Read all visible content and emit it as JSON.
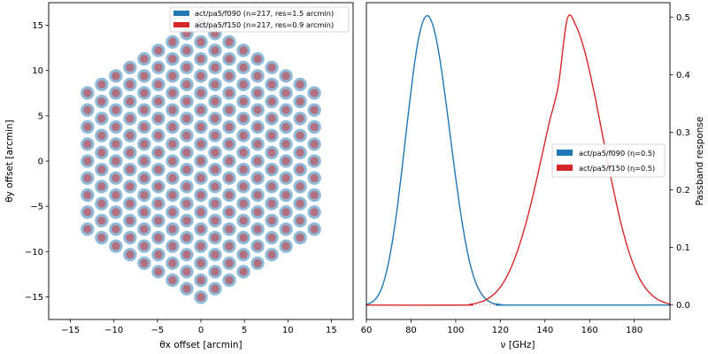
{
  "chart_data": [
    {
      "type": "scatter",
      "title": "",
      "xlabel": "θx offset [arcmin]",
      "ylabel": "θy offset [arcmin]",
      "xlim": [
        -17.5,
        17.5
      ],
      "ylim": [
        -17.5,
        17.5
      ],
      "xticks": [
        -15,
        -10,
        -5,
        0,
        5,
        10,
        15
      ],
      "yticks": [
        -15,
        -10,
        -5,
        0,
        5,
        10,
        15
      ],
      "layout": "hexagonal array centered at origin, 8 detectors per side, column spacing 1.63 arcmin, row spacing 1.88 arcmin",
      "grid": false,
      "legend_position": "top-right",
      "series": [
        {
          "name": "act/pa5/f090 (n=217, res=1.5 arcmin)",
          "color": "#1f77b4",
          "n": 217,
          "resolution_arcmin": 1.5
        },
        {
          "name": "act/pa5/f150 (n=217, res=0.9 arcmin)",
          "color": "#d62728",
          "n": 217,
          "resolution_arcmin": 0.9
        }
      ]
    },
    {
      "type": "line",
      "title": "",
      "xlabel": "ν [GHz]",
      "ylabel": "Passband response",
      "xlim": [
        60,
        196
      ],
      "ylim": [
        -0.025,
        0.525
      ],
      "xticks": [
        60,
        80,
        100,
        120,
        140,
        160,
        180
      ],
      "yticks": [
        0.0,
        0.1,
        0.2,
        0.3,
        0.4,
        0.5
      ],
      "y_axis_side": "right",
      "grid": false,
      "legend_position": "center-right",
      "series": [
        {
          "name": "act/pa5/f090 (η=0.5)",
          "color": "#1f77b4",
          "x": [
            60,
            62,
            64,
            66,
            68,
            70,
            72,
            74,
            76,
            78,
            80,
            82,
            84,
            86,
            88,
            90,
            92,
            94,
            96,
            98,
            100,
            102,
            104,
            106,
            108,
            110,
            112,
            114,
            116,
            118,
            120,
            122,
            124,
            196
          ],
          "y": [
            0.001,
            0.004,
            0.01,
            0.022,
            0.043,
            0.075,
            0.119,
            0.174,
            0.238,
            0.306,
            0.372,
            0.431,
            0.474,
            0.498,
            0.501,
            0.483,
            0.448,
            0.399,
            0.342,
            0.281,
            0.221,
            0.166,
            0.118,
            0.079,
            0.05,
            0.03,
            0.017,
            0.009,
            0.004,
            0.002,
            0.001,
            0.0,
            0.0,
            0.0
          ]
        },
        {
          "name": "act/pa5/f150 (η=0.5)",
          "color": "#d62728",
          "x": [
            60,
            104,
            106,
            110,
            114,
            118,
            122,
            126,
            130,
            134,
            138,
            142,
            146,
            150,
            154,
            158,
            162,
            166,
            170,
            174,
            178,
            182,
            186,
            190,
            194,
            196
          ],
          "y": [
            0.0,
            0.0,
            0.001,
            0.004,
            0.01,
            0.022,
            0.043,
            0.076,
            0.122,
            0.18,
            0.248,
            0.318,
            0.381,
            0.497,
            0.484,
            0.438,
            0.37,
            0.291,
            0.213,
            0.143,
            0.088,
            0.049,
            0.025,
            0.011,
            0.004,
            0.002
          ]
        }
      ]
    }
  ]
}
